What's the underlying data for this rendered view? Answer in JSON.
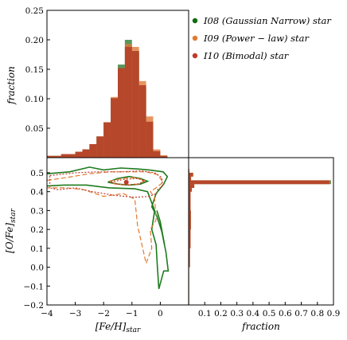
{
  "chart_data": [
    {
      "type": "bar",
      "panel": "top-histogram",
      "ylabel": "fraction",
      "xlim": [
        -4,
        1
      ],
      "ylim": [
        0,
        0.25
      ],
      "yticks": [
        "0.05",
        "0.10",
        "0.15",
        "0.20",
        "0.25"
      ],
      "bin_edges": [
        -4.0,
        -3.5,
        -3.0,
        -2.75,
        -2.5,
        -2.25,
        -2.0,
        -1.75,
        -1.5,
        -1.25,
        -1.0,
        -0.75,
        -0.5,
        -0.25,
        0.0,
        0.25,
        0.5
      ],
      "series": [
        {
          "name": "I08 (Gaussian Narrow) star",
          "color": "#2e7d32",
          "values": [
            0.003,
            0.006,
            0.01,
            0.014,
            0.023,
            0.036,
            0.06,
            0.1,
            0.158,
            0.2,
            0.18,
            0.12,
            0.06,
            0.01,
            0.003,
            0.0
          ]
        },
        {
          "name": "I09 (Power - law) star",
          "color": "#e07a3a",
          "values": [
            0.003,
            0.006,
            0.01,
            0.014,
            0.023,
            0.036,
            0.06,
            0.103,
            0.15,
            0.193,
            0.188,
            0.13,
            0.07,
            0.014,
            0.004,
            0.0
          ]
        },
        {
          "name": "I10 (Bimodal) star",
          "color": "#b5432a",
          "values": [
            0.003,
            0.006,
            0.01,
            0.014,
            0.023,
            0.036,
            0.06,
            0.101,
            0.152,
            0.188,
            0.181,
            0.123,
            0.061,
            0.011,
            0.003,
            0.0
          ]
        }
      ]
    },
    {
      "type": "contour",
      "panel": "main",
      "xlabel": "[Fe/H]star",
      "ylabel": "[O/Fe]star",
      "xlim": [
        -4,
        1
      ],
      "ylim": [
        -0.2,
        0.58
      ],
      "xticks": [
        "−4",
        "−3",
        "−2",
        "−1",
        "0"
      ],
      "yticks": [
        "−0.2",
        "−0.1",
        "0.0",
        "0.1",
        "0.2",
        "0.3",
        "0.4",
        "0.5"
      ],
      "series": [
        {
          "name": "I08 (Gaussian Narrow) star",
          "color": "#1e7b1e",
          "dash": "solid",
          "contours": [
            [
              [
                -4.0,
                0.495
              ],
              [
                -3.2,
                0.505
              ],
              [
                -2.5,
                0.53
              ],
              [
                -2.0,
                0.515
              ],
              [
                -1.4,
                0.525
              ],
              [
                -0.8,
                0.52
              ],
              [
                -0.4,
                0.515
              ],
              [
                0.1,
                0.505
              ],
              [
                0.25,
                0.48
              ],
              [
                0.12,
                0.44
              ],
              [
                -0.15,
                0.39
              ],
              [
                -0.3,
                0.32
              ],
              [
                -0.12,
                0.27
              ],
              [
                0.05,
                0.19
              ],
              [
                0.2,
                0.08
              ],
              [
                0.28,
                -0.02
              ],
              [
                0.12,
                -0.02
              ],
              [
                -0.05,
                -0.115
              ],
              [
                -0.1,
                0.0
              ],
              [
                -0.15,
                0.12
              ],
              [
                -0.3,
                0.2
              ],
              [
                -0.2,
                0.3
              ],
              [
                -0.45,
                0.4
              ],
              [
                -0.9,
                0.415
              ],
              [
                -1.8,
                0.42
              ],
              [
                -2.6,
                0.435
              ],
              [
                -3.4,
                0.435
              ],
              [
                -4.0,
                0.43
              ]
            ],
            [
              [
                -1.85,
                0.45
              ],
              [
                -1.5,
                0.47
              ],
              [
                -1.1,
                0.48
              ],
              [
                -0.7,
                0.47
              ],
              [
                -0.45,
                0.455
              ],
              [
                -0.7,
                0.44
              ],
              [
                -1.1,
                0.435
              ],
              [
                -1.5,
                0.44
              ],
              [
                -1.85,
                0.45
              ]
            ],
            [
              [
                -0.12,
                0.3
              ],
              [
                0.0,
                0.24
              ],
              [
                0.15,
                0.12
              ]
            ]
          ]
        },
        {
          "name": "I09 (Power - law) star",
          "color": "#e07a30",
          "dash": "dashed",
          "contours": [
            [
              [
                -4.0,
                0.46
              ],
              [
                -3.3,
                0.475
              ],
              [
                -2.5,
                0.495
              ],
              [
                -1.8,
                0.505
              ],
              [
                -1.1,
                0.505
              ],
              [
                -0.5,
                0.505
              ],
              [
                -0.1,
                0.49
              ],
              [
                0.1,
                0.45
              ],
              [
                -0.15,
                0.42
              ],
              [
                -0.35,
                0.4
              ],
              [
                -0.2,
                0.37
              ],
              [
                -0.15,
                0.25
              ],
              [
                -0.35,
                0.2
              ],
              [
                -0.3,
                0.1
              ],
              [
                -0.5,
                0.02
              ],
              [
                -0.8,
                0.22
              ],
              [
                -0.9,
                0.36
              ],
              [
                -1.3,
                0.39
              ],
              [
                -2.0,
                0.375
              ],
              [
                -2.7,
                0.41
              ],
              [
                -3.3,
                0.42
              ],
              [
                -4.0,
                0.42
              ]
            ],
            [
              [
                -1.8,
                0.455
              ],
              [
                -1.35,
                0.47
              ],
              [
                -0.9,
                0.475
              ],
              [
                -0.55,
                0.46
              ],
              [
                -0.75,
                0.44
              ],
              [
                -1.2,
                0.435
              ],
              [
                -1.6,
                0.44
              ],
              [
                -1.8,
                0.455
              ]
            ]
          ]
        },
        {
          "name": "I10 (Bimodal) star",
          "color": "#c0392b",
          "dash": "dotted",
          "contours": [
            [
              [
                -3.9,
                0.485
              ],
              [
                -3.0,
                0.5
              ],
              [
                -2.2,
                0.505
              ],
              [
                -1.4,
                0.505
              ],
              [
                -0.7,
                0.51
              ],
              [
                -0.2,
                0.5
              ],
              [
                0.05,
                0.475
              ],
              [
                0.08,
                0.43
              ],
              [
                -0.1,
                0.41
              ],
              [
                -0.12,
                0.39
              ],
              [
                -0.4,
                0.375
              ],
              [
                -0.9,
                0.37
              ],
              [
                -1.6,
                0.38
              ],
              [
                -2.4,
                0.4
              ],
              [
                -3.0,
                0.42
              ],
              [
                -3.6,
                0.41
              ],
              [
                -3.9,
                0.42
              ],
              [
                -3.9,
                0.485
              ]
            ],
            [
              [
                -1.75,
                0.45
              ],
              [
                -1.3,
                0.465
              ],
              [
                -0.8,
                0.47
              ],
              [
                -0.55,
                0.455
              ],
              [
                -0.8,
                0.44
              ],
              [
                -1.3,
                0.435
              ],
              [
                -1.75,
                0.45
              ]
            ]
          ],
          "peak": [
            -1.2,
            0.45
          ]
        }
      ]
    },
    {
      "type": "bar",
      "panel": "right-histogram",
      "orientation": "horizontal",
      "xlabel": "fraction",
      "xlim": [
        0,
        0.9
      ],
      "xticks": [
        "0.1",
        "0.2",
        "0.3",
        "0.4",
        "0.5",
        "0.6",
        "0.7",
        "0.8",
        "0.9"
      ],
      "bin_edges_y": [
        -0.2,
        0.0,
        0.1,
        0.2,
        0.3,
        0.35,
        0.4,
        0.42,
        0.44,
        0.46,
        0.48,
        0.5,
        0.52,
        0.54
      ],
      "series": [
        {
          "name": "I08 (Gaussian Narrow) star",
          "color": "#2e7d32",
          "values": [
            0.003,
            0.008,
            0.012,
            0.014,
            0.012,
            0.012,
            0.02,
            0.035,
            0.885,
            0.015,
            0.028,
            0.004,
            0.0
          ]
        },
        {
          "name": "I09 (Power - law) star",
          "color": "#e07a3a",
          "values": [
            0.003,
            0.008,
            0.012,
            0.014,
            0.012,
            0.012,
            0.02,
            0.035,
            0.88,
            0.015,
            0.03,
            0.004,
            0.0
          ]
        },
        {
          "name": "I10 (Bimodal) star",
          "color": "#b5432a",
          "values": [
            0.003,
            0.008,
            0.012,
            0.014,
            0.012,
            0.012,
            0.02,
            0.035,
            0.875,
            0.015,
            0.026,
            0.004,
            0.0
          ]
        }
      ]
    }
  ],
  "legend": [
    {
      "label": "I08 (Gaussian Narrow) star",
      "color": "#0f6b0f"
    },
    {
      "label": "I09 (Power − law) star",
      "color": "#e07a30"
    },
    {
      "label": "I10 (Bimodal) star",
      "color": "#c0392b"
    }
  ],
  "labels": {
    "top_ylabel": "fraction",
    "main_xlabel_main": "[Fe/H]",
    "main_xlabel_sub": "star",
    "main_ylabel_main": "[O/Fe]",
    "main_ylabel_sub": "star",
    "right_xlabel": "fraction"
  }
}
